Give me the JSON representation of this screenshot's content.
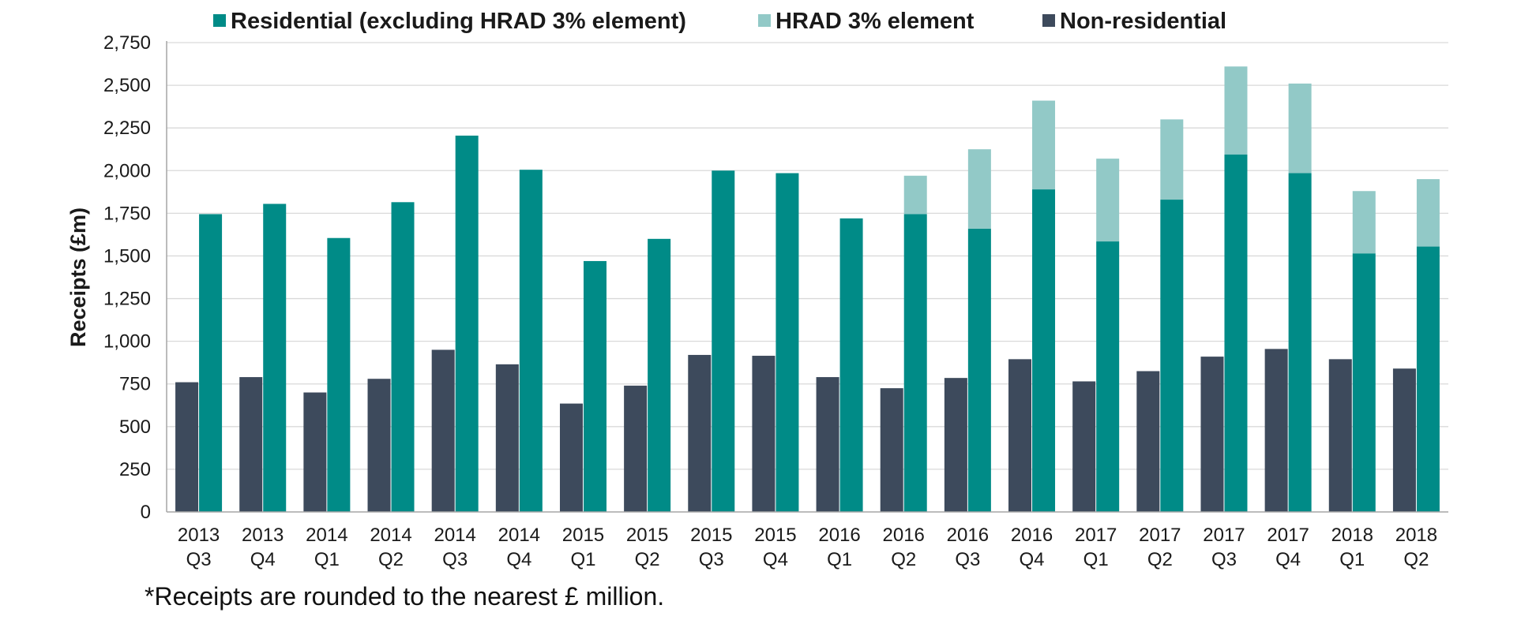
{
  "chart_data": {
    "type": "bar",
    "title": "",
    "xlabel": "",
    "ylabel": "Receipts (£m)",
    "ylim": [
      0,
      2750
    ],
    "yticks": [
      0,
      250,
      500,
      750,
      1000,
      1250,
      1500,
      1750,
      2000,
      2250,
      2500,
      2750
    ],
    "ytick_labels": [
      "0",
      "250",
      "500",
      "750",
      "1,000",
      "1,250",
      "1,500",
      "1,750",
      "2,000",
      "2,250",
      "2,500",
      "2,750"
    ],
    "grid": true,
    "legend_position": "top",
    "categories": [
      [
        "2013",
        "Q3"
      ],
      [
        "2013",
        "Q4"
      ],
      [
        "2014",
        "Q1"
      ],
      [
        "2014",
        "Q2"
      ],
      [
        "2014",
        "Q3"
      ],
      [
        "2014",
        "Q4"
      ],
      [
        "2015",
        "Q1"
      ],
      [
        "2015",
        "Q2"
      ],
      [
        "2015",
        "Q3"
      ],
      [
        "2015",
        "Q4"
      ],
      [
        "2016",
        "Q1"
      ],
      [
        "2016",
        "Q2"
      ],
      [
        "2016",
        "Q3"
      ],
      [
        "2016",
        "Q4"
      ],
      [
        "2017",
        "Q1"
      ],
      [
        "2017",
        "Q2"
      ],
      [
        "2017",
        "Q3"
      ],
      [
        "2017",
        "Q4"
      ],
      [
        "2018",
        "Q1"
      ],
      [
        "2018",
        "Q2"
      ]
    ],
    "series": [
      {
        "name": "Residential (excluding HRAD 3% element)",
        "color": "#008B87",
        "stack": "residential",
        "values": [
          1745,
          1805,
          1605,
          1815,
          2205,
          2005,
          1470,
          1600,
          2000,
          1985,
          1720,
          1745,
          1660,
          1890,
          1585,
          1830,
          2095,
          1985,
          1515,
          1555
        ]
      },
      {
        "name": "HRAD 3% element",
        "color": "#92C9C7",
        "stack": "residential",
        "values": [
          0,
          0,
          0,
          0,
          0,
          0,
          0,
          0,
          0,
          0,
          0,
          225,
          465,
          520,
          485,
          470,
          515,
          525,
          365,
          395
        ]
      },
      {
        "name": "Non-residential",
        "color": "#3D4A5C",
        "stack": "nonresidential",
        "values": [
          760,
          790,
          700,
          780,
          950,
          865,
          635,
          740,
          920,
          915,
          790,
          725,
          785,
          895,
          765,
          825,
          910,
          955,
          895,
          840
        ]
      }
    ]
  },
  "footnote": "*Receipts are rounded to the nearest £ million."
}
